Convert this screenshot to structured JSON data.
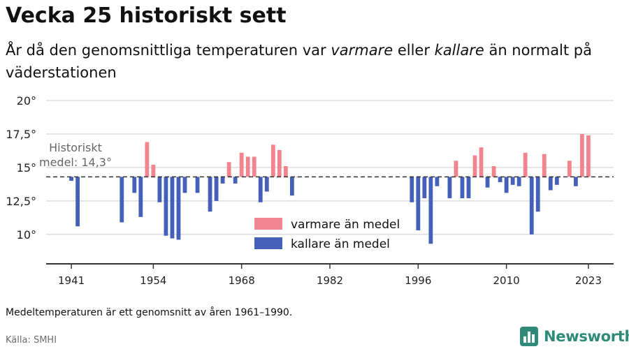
{
  "header": {
    "title": "Vecka 25 historiskt sett",
    "subtitle": {
      "part1": "År då den genomsnittliga temperaturen var ",
      "em1": "varmare",
      "part2": " eller ",
      "em2": "kallare",
      "part3": " än normalt på väderstationen"
    }
  },
  "footer": {
    "note": "Medeltemperaturen är ett genomsnitt av åren 1961–1990.",
    "source": "Källa: SMHI",
    "brand": "Newsworthy",
    "brand_icon": "newsworthy-logo-icon"
  },
  "colors": {
    "warm": "#f2848f",
    "cold": "#4460b8",
    "grid": "#dddddd",
    "axis": "#333333",
    "mean_line": "#333333",
    "brand": "#2f8a78"
  },
  "chart_data": {
    "type": "bar",
    "title": "Vecka 25 historiskt sett",
    "baseline": 14.3,
    "baseline_label_line1": "Historiskt",
    "baseline_label_line2": "medel: 14,3°",
    "xlim": [
      1937,
      2027
    ],
    "ylim": [
      7.8,
      20
    ],
    "yticks": [
      10,
      12.5,
      15,
      17.5,
      20
    ],
    "ytick_labels": [
      "10°",
      "12,5°",
      "15°",
      "17,5°",
      "20°"
    ],
    "xticks": [
      1941,
      1954,
      1968,
      1982,
      1996,
      2010,
      2023
    ],
    "xtick_labels": [
      "1941",
      "1954",
      "1968",
      "1982",
      "1996",
      "2010",
      "2023"
    ],
    "legend": {
      "position": "center",
      "items": [
        {
          "label": "varmare än medel",
          "color": "#f2848f"
        },
        {
          "label": "kallare än medel",
          "color": "#4460b8"
        }
      ]
    },
    "x": [
      1941,
      1942,
      1949,
      1951,
      1952,
      1953,
      1954,
      1955,
      1956,
      1957,
      1958,
      1959,
      1961,
      1963,
      1964,
      1965,
      1966,
      1967,
      1968,
      1969,
      1970,
      1971,
      1972,
      1973,
      1974,
      1975,
      1976,
      1977,
      1995,
      1996,
      1997,
      1998,
      1999,
      2001,
      2002,
      2003,
      2004,
      2005,
      2006,
      2007,
      2008,
      2009,
      2010,
      2011,
      2012,
      2013,
      2014,
      2015,
      2016,
      2017,
      2018,
      2020,
      2021,
      2022,
      2023
    ],
    "values": [
      14.0,
      10.6,
      10.9,
      13.1,
      11.3,
      16.9,
      15.2,
      12.4,
      9.9,
      9.7,
      9.6,
      13.1,
      13.1,
      11.7,
      12.5,
      13.8,
      15.4,
      13.8,
      16.1,
      15.8,
      15.8,
      12.4,
      13.2,
      16.7,
      16.3,
      15.1,
      12.9,
      14.3,
      12.4,
      10.3,
      12.7,
      9.3,
      13.6,
      12.7,
      15.5,
      12.7,
      12.7,
      15.9,
      16.5,
      13.5,
      15.1,
      13.9,
      13.1,
      13.7,
      13.6,
      16.1,
      10.0,
      11.7,
      16.0,
      13.3,
      13.7,
      15.5,
      13.6,
      17.5,
      17.4
    ]
  }
}
